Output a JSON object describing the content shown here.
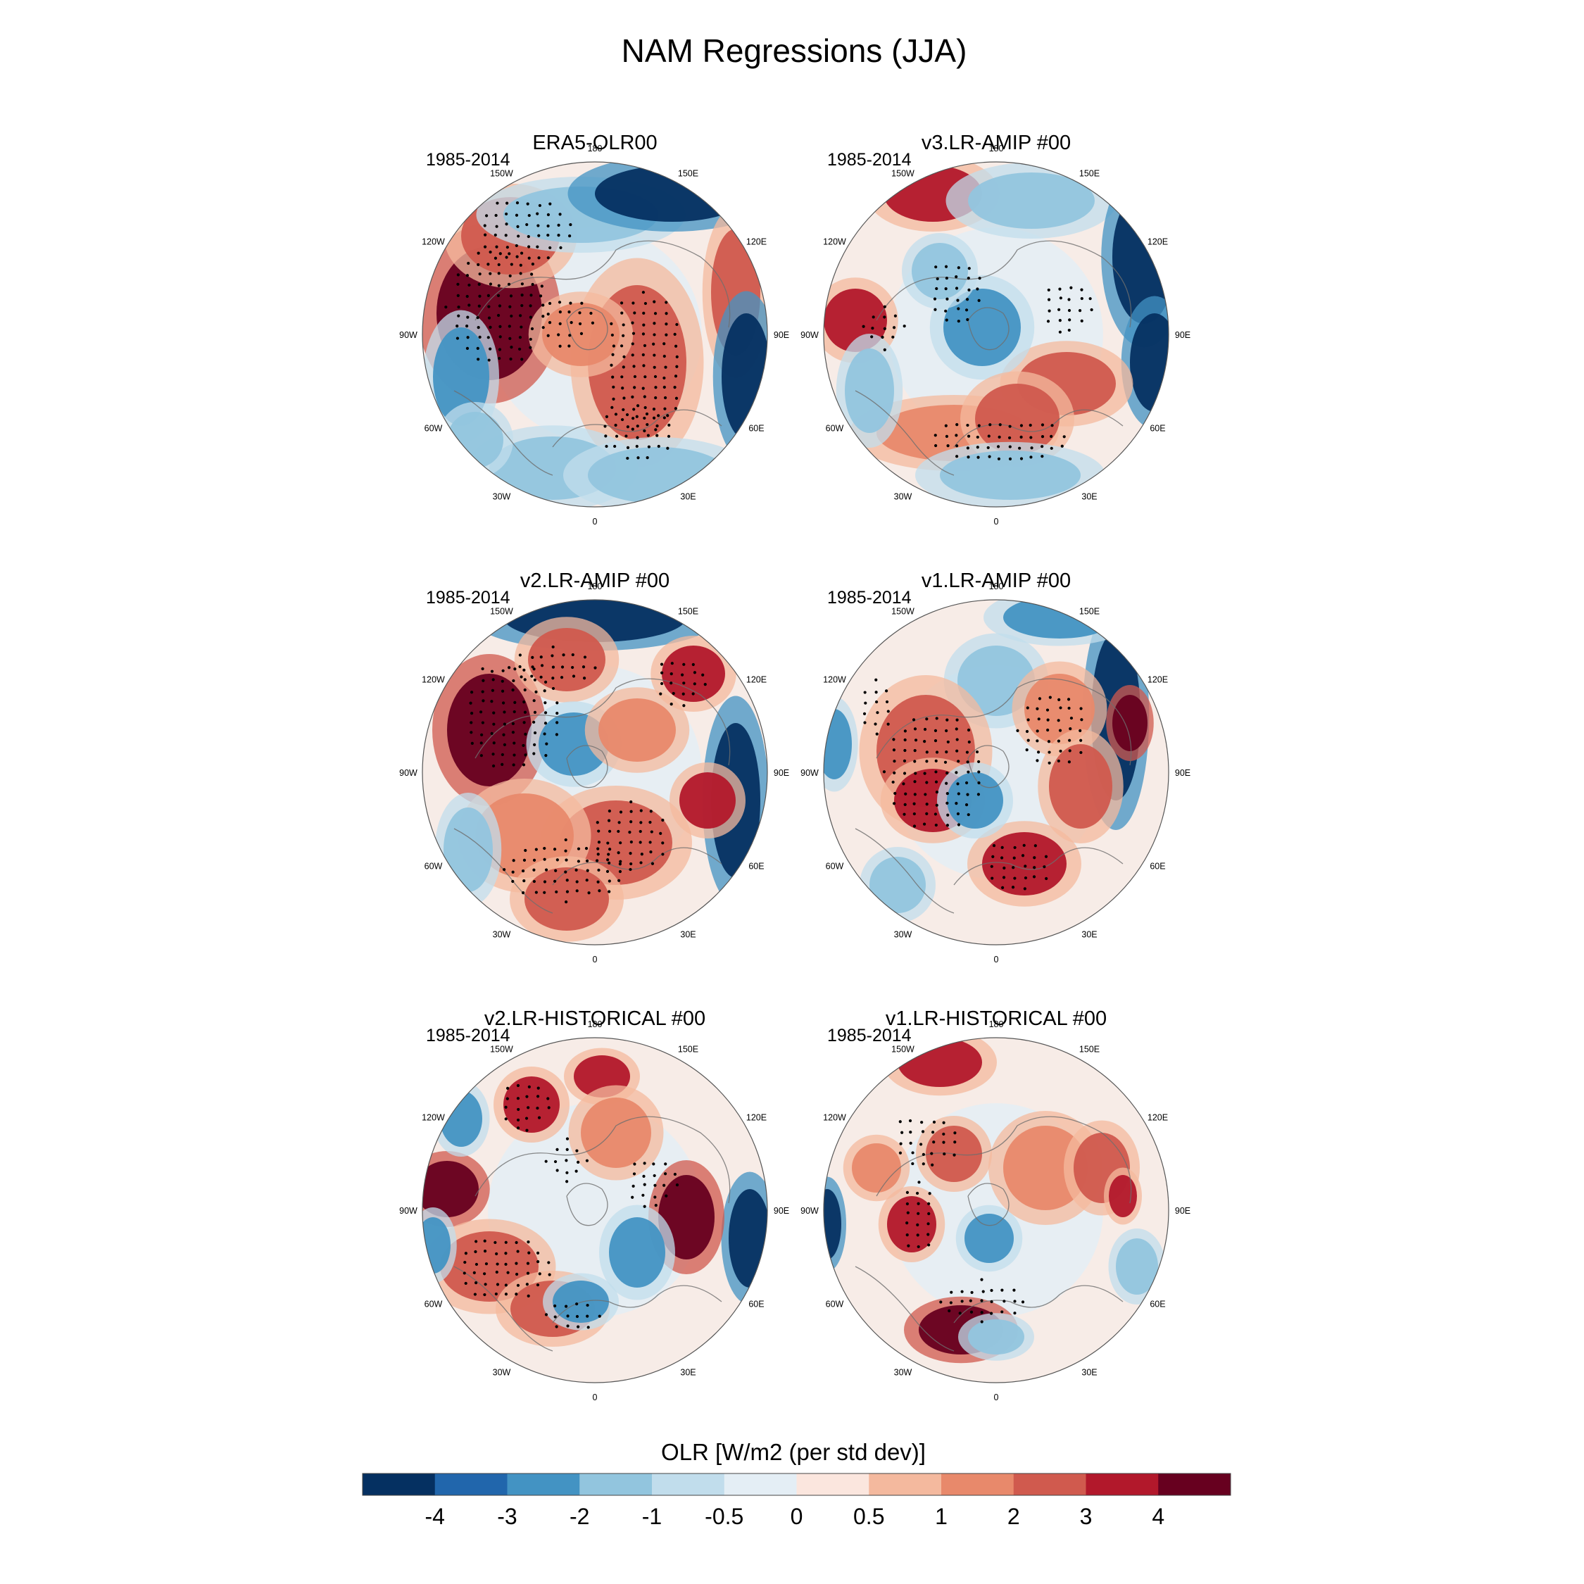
{
  "figure": {
    "title": "NAM Regressions (JJA)"
  },
  "longitude_labels": [
    "180",
    "150E",
    "120E",
    "90E",
    "60E",
    "30E",
    "0",
    "30W",
    "60W",
    "90W",
    "120W",
    "150W"
  ],
  "panels": [
    {
      "title": "ERA5-OLR00",
      "period": "1985-2014"
    },
    {
      "title": "v3.LR-AMIP  #00",
      "period": "1985-2014"
    },
    {
      "title": "v2.LR-AMIP  #00",
      "period": "1985-2014"
    },
    {
      "title": "v1.LR-AMIP  #00",
      "period": "1985-2014"
    },
    {
      "title": "v2.LR-HISTORICAL  #00",
      "period": "1985-2014"
    },
    {
      "title": "v1.LR-HISTORICAL  #00",
      "period": "1985-2014"
    }
  ],
  "colorbar": {
    "title": "OLR [W/m2 (per std dev)]",
    "colors": [
      "#053061",
      "#2166ac",
      "#4393c3",
      "#92c5de",
      "#c1ddec",
      "#e4eef5",
      "#fbe6de",
      "#f4b99e",
      "#e8896b",
      "#d05a4e",
      "#b2182b",
      "#67001f"
    ],
    "tick_labels": [
      "-4",
      "-3",
      "-2",
      "-1",
      "-0.5",
      "0",
      "0.5",
      "1",
      "2",
      "3",
      "4"
    ]
  },
  "colors": {
    "strong_negative": "#053061",
    "strong_positive": "#67001f",
    "neutral": "#f7f7f7"
  }
}
